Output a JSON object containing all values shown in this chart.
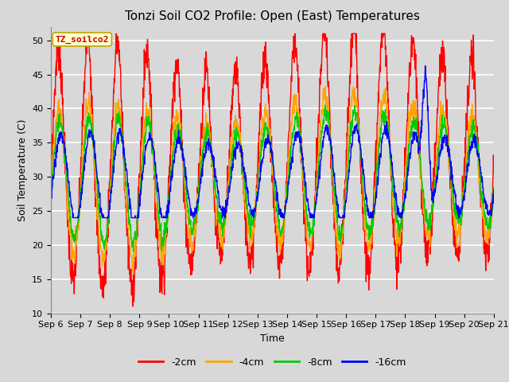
{
  "title": "Tonzi Soil CO2 Profile: Open (East) Temperatures",
  "xlabel": "Time",
  "ylabel": "Soil Temperature (C)",
  "ylim": [
    10,
    52
  ],
  "yticks": [
    10,
    15,
    20,
    25,
    30,
    35,
    40,
    45,
    50
  ],
  "legend_label": "TZ_soilco2",
  "legend_box_color": "#ffffcc",
  "legend_box_edge": "#bbaa00",
  "series_labels": [
    "-2cm",
    "-4cm",
    "-8cm",
    "-16cm"
  ],
  "series_colors": [
    "#ff0000",
    "#ffa500",
    "#00cc00",
    "#0000ff"
  ],
  "background_color": "#d8d8d8",
  "plot_bg_color": "#d8d8d8",
  "grid_color": "#ffffff",
  "title_fontsize": 11,
  "axis_fontsize": 9,
  "tick_fontsize": 8,
  "x_start_day": 6,
  "x_end_day": 21,
  "x_tick_days": [
    6,
    7,
    8,
    9,
    10,
    11,
    12,
    13,
    14,
    15,
    16,
    17,
    18,
    19,
    20,
    21
  ]
}
